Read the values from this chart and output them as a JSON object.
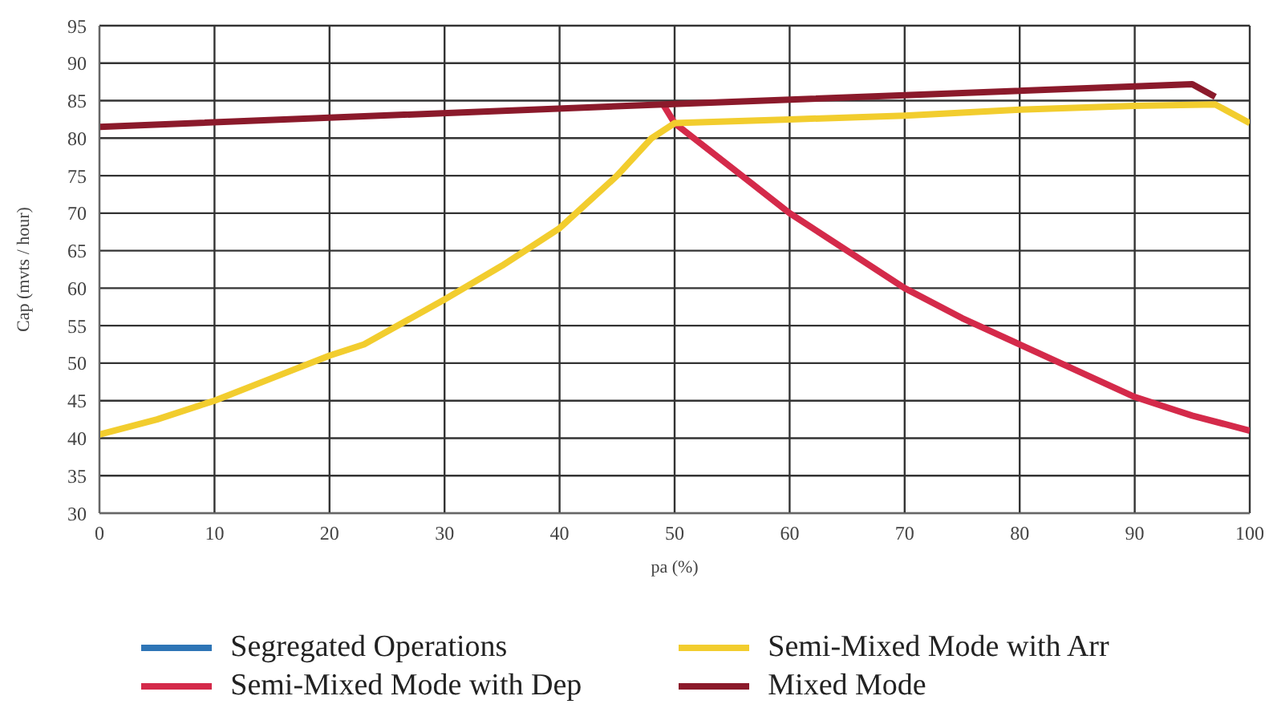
{
  "chart_data": {
    "type": "line",
    "xlabel": "pa (%)",
    "ylabel": "Cap (mvts / hour)",
    "xlim": [
      0,
      100
    ],
    "xticks": [
      0,
      10,
      20,
      30,
      40,
      50,
      60,
      70,
      80,
      90,
      100
    ],
    "ylim": [
      30,
      95
    ],
    "yticks": [
      30,
      35,
      40,
      45,
      50,
      55,
      60,
      65,
      70,
      75,
      80,
      85,
      90,
      95
    ],
    "grid": true,
    "legend": "bottom",
    "marker": "none",
    "line_style": "solid",
    "series": [
      {
        "name": "Segregated Operations",
        "color": "#2e75b6"
      },
      {
        "name": "Semi-Mixed Mode with Dep",
        "color": "#d42a4a",
        "x": [
          49,
          50,
          55,
          60,
          65,
          70,
          75,
          80,
          85,
          90,
          95,
          100
        ],
        "values": [
          84.5,
          82,
          76,
          70,
          65,
          60,
          56,
          52.5,
          49,
          45.5,
          43,
          41
        ]
      },
      {
        "name": "Semi-Mixed Mode with Arr",
        "color": "#f2cd2e",
        "x": [
          0,
          5,
          10,
          15,
          20,
          23,
          30,
          35,
          40,
          45,
          48,
          50,
          60,
          70,
          80,
          90,
          97,
          100
        ],
        "values": [
          40.5,
          42.5,
          45,
          48,
          51,
          52.5,
          58.5,
          63,
          68,
          75,
          80,
          82,
          82.5,
          83,
          83.8,
          84.3,
          84.5,
          82
        ]
      },
      {
        "name": "Mixed Mode",
        "color": "#8b1a2b",
        "x": [
          0,
          49,
          95,
          97
        ],
        "values": [
          81.5,
          84.5,
          87.2,
          85.5
        ]
      }
    ]
  }
}
